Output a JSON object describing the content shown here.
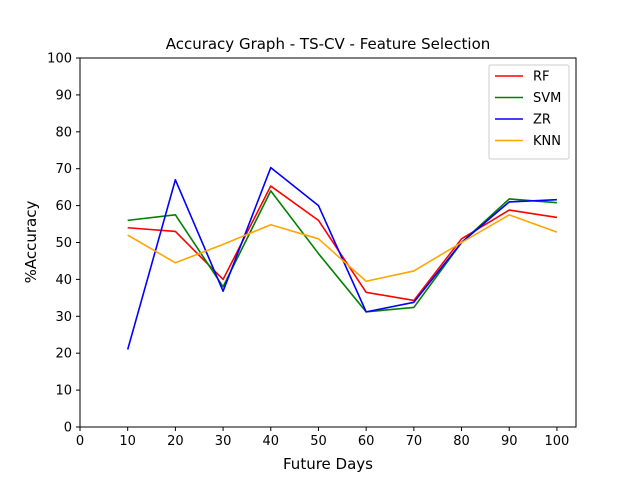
{
  "chart_data": {
    "type": "line",
    "title": "Accuracy Graph - TS-CV - Feature Selection",
    "xlabel": "Future Days",
    "ylabel": "%Accuracy",
    "xlim": [
      0,
      104
    ],
    "ylim": [
      0,
      100
    ],
    "xticks": [
      0,
      10,
      20,
      30,
      40,
      50,
      60,
      70,
      80,
      90,
      100
    ],
    "yticks": [
      0,
      10,
      20,
      30,
      40,
      50,
      60,
      70,
      80,
      90,
      100
    ],
    "grid": false,
    "legend_position": "top-right",
    "x": [
      10,
      20,
      30,
      40,
      50,
      60,
      70,
      80,
      90,
      100
    ],
    "series": [
      {
        "name": "RF",
        "color": "#ff0000",
        "values": [
          54,
          53,
          40,
          65.3,
          56,
          36.5,
          34.3,
          51,
          58.8,
          56.8
        ]
      },
      {
        "name": "SVM",
        "color": "#008000",
        "values": [
          56,
          57.5,
          38,
          64,
          47,
          31.2,
          32.4,
          50,
          61.8,
          60.8
        ]
      },
      {
        "name": "ZR",
        "color": "#0000ff",
        "values": [
          21,
          67,
          36.8,
          70.3,
          60,
          31.2,
          33.8,
          50,
          61,
          61.6
        ]
      },
      {
        "name": "KNN",
        "color": "#ffa500",
        "values": [
          52,
          44.5,
          49.5,
          54.8,
          51,
          39.5,
          42.3,
          50,
          57.5,
          52.8
        ]
      }
    ]
  }
}
